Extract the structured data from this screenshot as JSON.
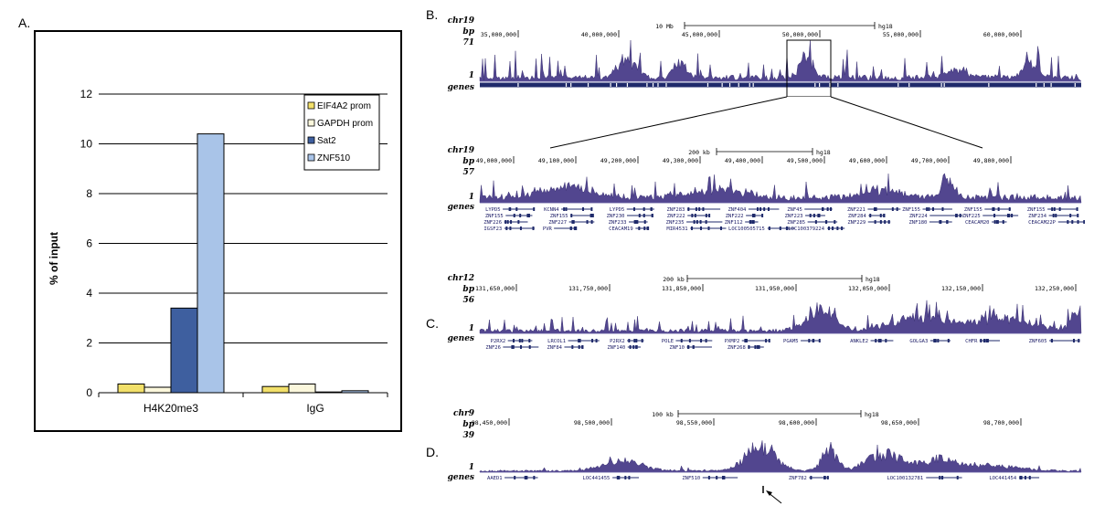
{
  "panels": {
    "a": "A.",
    "b": "B.",
    "c": "C.",
    "d": "D."
  },
  "chart_data": {
    "type": "bar",
    "categories": [
      "H4K20me3",
      "IgG"
    ],
    "series": [
      {
        "name": "EIF4A2 prom",
        "color": "#f2e06a",
        "values": [
          0.35,
          0.25
        ]
      },
      {
        "name": "GAPDH prom",
        "color": "#fbf7dc",
        "values": [
          0.22,
          0.35
        ]
      },
      {
        "name": "Sat2",
        "color": "#3e5f9f",
        "values": [
          3.4,
          0.03
        ]
      },
      {
        "name": "ZNF510",
        "color": "#a9c4e8",
        "values": [
          10.4,
          0.08
        ]
      }
    ],
    "ylabel": "% of input",
    "ylim": [
      0,
      12
    ],
    "yticks": [
      0,
      2,
      4,
      6,
      8,
      10,
      12
    ],
    "grid": true,
    "legend": "top-right"
  },
  "browser": {
    "track_bp": "bp",
    "track_genes": "genes",
    "track_one": "1",
    "hg": "hg18",
    "b1": {
      "chr": "chr19",
      "max": "71",
      "scale": "10 Mb",
      "ticks": [
        "35,000,000",
        "40,000,000",
        "45,000,000",
        "50,000,000",
        "55,000,000",
        "60,000,000"
      ]
    },
    "b2": {
      "chr": "chr19",
      "max": "57",
      "scale": "200 kb",
      "ticks": [
        "49,000,000",
        "49,100,000",
        "49,200,000",
        "49,300,000",
        "49,400,000",
        "49,500,000",
        "49,600,000",
        "49,700,000",
        "49,800,000"
      ],
      "genes": [
        "LYPD5",
        "KCNN4",
        "LYPD5",
        "ZNF283",
        "ZNF404",
        "ZNF45",
        "ZNF221",
        "ZNF155",
        "ZNF155",
        "ZNF155",
        "ZNF155",
        "ZNF155",
        "ZNF230",
        "ZNF222",
        "ZNF222",
        "ZNF223",
        "ZNF284",
        "ZNF224",
        "ZNF225",
        "ZNF234",
        "ZNF226",
        "ZNF227",
        "ZNF233",
        "ZNF235",
        "ZNF112",
        "ZNF285",
        "ZNF229",
        "ZNF180",
        "CEACAM20",
        "CEACAM22P",
        "IGSF23",
        "PVR",
        "CEACAM19",
        "MIR4531",
        "LOC100505715",
        "LOC100379224"
      ]
    },
    "c": {
      "chr": "chr12",
      "max": "56",
      "scale": "200 kb",
      "ticks": [
        "131,650,000",
        "131,750,000",
        "131,850,000",
        "131,950,000",
        "132,050,000",
        "132,150,000",
        "132,250,000"
      ],
      "genes": [
        "P2RX2",
        "LRCOL1",
        "P2RX2",
        "POLE",
        "PXMP2",
        "PGAM5",
        "ANKLE2",
        "GOLGA3",
        "CHFR",
        "ZNF605",
        "ZNF26",
        "ZNF84",
        "ZNF140",
        "ZNF10",
        "ZNF268"
      ]
    },
    "d": {
      "chr": "chr9",
      "max": "39",
      "scale": "100 kb",
      "ticks": [
        "98,450,000",
        "98,500,000",
        "98,550,000",
        "98,600,000",
        "98,650,000",
        "98,700,000"
      ],
      "genes": [
        "AAED1",
        "LOC441455",
        "ZNF510",
        "ZNF782",
        "LOC100132781",
        "LOC441454"
      ]
    }
  }
}
